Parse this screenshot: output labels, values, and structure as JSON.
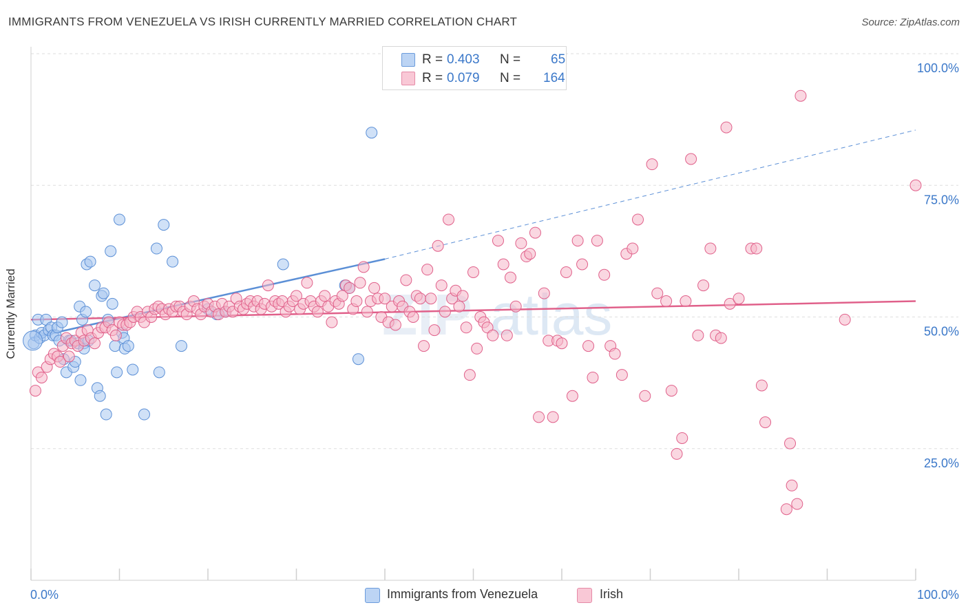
{
  "header": {
    "title": "IMMIGRANTS FROM VENEZUELA VS IRISH CURRENTLY MARRIED CORRELATION CHART",
    "source": "Source: ZipAtlas.com"
  },
  "legend_top": {
    "rows": [
      {
        "r_label": "R =",
        "r_value": "0.403",
        "n_label": "N =",
        "n_value": "65",
        "color": "#a9c8f0"
      },
      {
        "r_label": "R =",
        "r_value": "0.079",
        "n_label": "N =",
        "n_value": "164",
        "color": "#f6b6c8"
      }
    ]
  },
  "legend_bottom": {
    "items": [
      {
        "label": "Immigrants from Venezuela",
        "color": "#a9c8f0"
      },
      {
        "label": "Irish",
        "color": "#f6b6c8"
      }
    ]
  },
  "watermark": {
    "zip": "ZIP",
    "atlas": "atlas"
  },
  "chart_data": {
    "type": "scatter",
    "title": "IMMIGRANTS FROM VENEZUELA VS IRISH CURRENTLY MARRIED CORRELATION CHART",
    "xlabel": "",
    "ylabel": "Currently Married",
    "xlim": [
      0,
      100
    ],
    "ylim": [
      0,
      100
    ],
    "x_tick_labels": [
      "0.0%",
      "100.0%"
    ],
    "y_tick_labels": [
      "25.0%",
      "50.0%",
      "75.0%",
      "100.0%"
    ],
    "y_ticks": [
      25,
      50,
      75,
      100
    ],
    "grid": true,
    "legend_position": "top-center",
    "series": [
      {
        "name": "Immigrants from Venezuela",
        "color": "#5b8fd6",
        "fill": "#a9c8f0",
        "trend": {
          "x": [
            0,
            40
          ],
          "y": [
            46,
            61
          ],
          "dashed_to": {
            "x": 100,
            "y": 85.5
          }
        },
        "points": [
          [
            0.3,
            45
          ],
          [
            0.5,
            46.5
          ],
          [
            0.8,
            49.5
          ],
          [
            1,
            46
          ],
          [
            1.2,
            47
          ],
          [
            1.5,
            46.5
          ],
          [
            1.7,
            49.5
          ],
          [
            2,
            47.5
          ],
          [
            2.3,
            48
          ],
          [
            2.5,
            46.5
          ],
          [
            2.8,
            46.5
          ],
          [
            3,
            48
          ],
          [
            3.2,
            45.5
          ],
          [
            3.5,
            49
          ],
          [
            3.7,
            42
          ],
          [
            4,
            39.5
          ],
          [
            4.3,
            45.5
          ],
          [
            4.5,
            45.5
          ],
          [
            4.8,
            40.5
          ],
          [
            5,
            41.5
          ],
          [
            5.3,
            45
          ],
          [
            5.5,
            52
          ],
          [
            5.6,
            38
          ],
          [
            5.8,
            49.5
          ],
          [
            6,
            45
          ],
          [
            6,
            44
          ],
          [
            6.2,
            51
          ],
          [
            6.5,
            45.5
          ],
          [
            6.3,
            60
          ],
          [
            6.7,
            60.5
          ],
          [
            7.2,
            56
          ],
          [
            7.5,
            36.5
          ],
          [
            7.8,
            35
          ],
          [
            8,
            54
          ],
          [
            8.2,
            54.5
          ],
          [
            8.5,
            31.5
          ],
          [
            8.7,
            49.5
          ],
          [
            9,
            62.5
          ],
          [
            9.2,
            52.5
          ],
          [
            9.5,
            44.5
          ],
          [
            9.7,
            39.5
          ],
          [
            10,
            68.5
          ],
          [
            10.3,
            47
          ],
          [
            10.5,
            46
          ],
          [
            10.6,
            44
          ],
          [
            11,
            44.5
          ],
          [
            11.5,
            40
          ],
          [
            12.8,
            31.5
          ],
          [
            14.2,
            63
          ],
          [
            14.5,
            39.5
          ],
          [
            15,
            67.5
          ],
          [
            16,
            60.5
          ],
          [
            17,
            44.5
          ],
          [
            20,
            51.5
          ],
          [
            21,
            50.5
          ],
          [
            22,
            51
          ],
          [
            28.5,
            60
          ],
          [
            35.5,
            56
          ],
          [
            36,
            55.5
          ],
          [
            37,
            42
          ],
          [
            38.5,
            85
          ]
        ]
      },
      {
        "name": "Irish",
        "color": "#e0608a",
        "fill": "#f6b6c8",
        "trend": {
          "x": [
            0,
            100
          ],
          "y": [
            49.5,
            53
          ]
        },
        "points": [
          [
            0.5,
            36
          ],
          [
            0.8,
            39.5
          ],
          [
            1.2,
            38.5
          ],
          [
            1.8,
            40.5
          ],
          [
            2.2,
            42
          ],
          [
            2.6,
            43
          ],
          [
            3,
            42.5
          ],
          [
            3.3,
            41.5
          ],
          [
            3.6,
            44.5
          ],
          [
            4,
            46
          ],
          [
            4.3,
            42.5
          ],
          [
            4.6,
            45
          ],
          [
            5,
            45.5
          ],
          [
            5.3,
            44.5
          ],
          [
            5.7,
            47
          ],
          [
            6,
            45.5
          ],
          [
            6.4,
            47.5
          ],
          [
            6.8,
            46
          ],
          [
            7.2,
            45
          ],
          [
            7.6,
            47
          ],
          [
            8,
            48
          ],
          [
            8.4,
            48
          ],
          [
            8.8,
            49
          ],
          [
            9.2,
            47.5
          ],
          [
            9.6,
            46.5
          ],
          [
            10,
            49
          ],
          [
            10.4,
            48.5
          ],
          [
            10.8,
            48.5
          ],
          [
            11.2,
            49
          ],
          [
            11.6,
            50
          ],
          [
            12,
            51
          ],
          [
            12.4,
            50
          ],
          [
            12.8,
            49
          ],
          [
            13.2,
            51
          ],
          [
            13.6,
            50
          ],
          [
            14,
            51.5
          ],
          [
            14.4,
            52
          ],
          [
            14.8,
            51.5
          ],
          [
            15.2,
            50.5
          ],
          [
            15.6,
            51.5
          ],
          [
            16,
            51
          ],
          [
            16.4,
            52
          ],
          [
            16.8,
            52
          ],
          [
            17.2,
            51
          ],
          [
            17.6,
            50.5
          ],
          [
            18,
            52
          ],
          [
            18.4,
            53
          ],
          [
            18.8,
            51.5
          ],
          [
            19.2,
            50.5
          ],
          [
            19.6,
            52
          ],
          [
            20,
            52.5
          ],
          [
            20.4,
            51
          ],
          [
            20.8,
            52
          ],
          [
            21.2,
            50.5
          ],
          [
            21.6,
            52.5
          ],
          [
            22,
            51
          ],
          [
            22.4,
            52
          ],
          [
            22.8,
            51
          ],
          [
            23.2,
            53.5
          ],
          [
            23.6,
            52
          ],
          [
            24,
            51.5
          ],
          [
            24.4,
            52.5
          ],
          [
            24.8,
            53
          ],
          [
            25.2,
            52
          ],
          [
            25.6,
            53
          ],
          [
            26,
            51.5
          ],
          [
            26.4,
            52.5
          ],
          [
            26.8,
            56
          ],
          [
            27.2,
            52
          ],
          [
            27.6,
            53
          ],
          [
            28,
            52.5
          ],
          [
            28.4,
            53
          ],
          [
            28.8,
            51
          ],
          [
            29.2,
            52
          ],
          [
            29.6,
            53
          ],
          [
            30,
            54
          ],
          [
            30.4,
            51.5
          ],
          [
            30.8,
            52.5
          ],
          [
            31.2,
            56.5
          ],
          [
            31.6,
            53
          ],
          [
            32,
            52
          ],
          [
            32.4,
            51
          ],
          [
            32.8,
            53
          ],
          [
            33.2,
            54
          ],
          [
            33.6,
            52
          ],
          [
            34,
            49
          ],
          [
            34.4,
            53
          ],
          [
            34.8,
            52.5
          ],
          [
            35.2,
            54
          ],
          [
            35.6,
            56
          ],
          [
            36,
            55.5
          ],
          [
            36.4,
            51.5
          ],
          [
            36.8,
            53
          ],
          [
            37.2,
            56.5
          ],
          [
            37.6,
            59.5
          ],
          [
            38,
            51
          ],
          [
            38.4,
            53
          ],
          [
            38.8,
            55.5
          ],
          [
            39.2,
            53.5
          ],
          [
            39.6,
            50
          ],
          [
            40,
            53.5
          ],
          [
            40.4,
            49
          ],
          [
            40.8,
            52
          ],
          [
            41.2,
            48.5
          ],
          [
            41.6,
            53
          ],
          [
            42,
            52
          ],
          [
            42.4,
            57
          ],
          [
            42.8,
            51
          ],
          [
            43.2,
            50
          ],
          [
            43.6,
            54
          ],
          [
            44,
            53.5
          ],
          [
            44.4,
            44.5
          ],
          [
            44.8,
            59
          ],
          [
            45.2,
            53.5
          ],
          [
            45.6,
            47.5
          ],
          [
            46,
            63.5
          ],
          [
            46.4,
            56
          ],
          [
            46.8,
            51
          ],
          [
            47.2,
            68.5
          ],
          [
            47.6,
            53.5
          ],
          [
            48,
            55
          ],
          [
            48.4,
            52
          ],
          [
            48.8,
            54
          ],
          [
            49.2,
            48
          ],
          [
            49.6,
            39
          ],
          [
            50,
            58.5
          ],
          [
            50.4,
            44
          ],
          [
            50.8,
            50
          ],
          [
            51.2,
            49
          ],
          [
            51.6,
            48
          ],
          [
            52.2,
            46.5
          ],
          [
            52.8,
            64.5
          ],
          [
            53.4,
            60
          ],
          [
            53.8,
            46.5
          ],
          [
            54.2,
            57.5
          ],
          [
            54.8,
            52
          ],
          [
            55.4,
            64
          ],
          [
            56,
            61.5
          ],
          [
            56.4,
            62
          ],
          [
            57,
            66
          ],
          [
            57.4,
            31
          ],
          [
            58,
            54.5
          ],
          [
            58.5,
            45.5
          ],
          [
            59,
            31
          ],
          [
            59.5,
            45.5
          ],
          [
            60,
            45
          ],
          [
            60.5,
            58.5
          ],
          [
            61.2,
            35
          ],
          [
            61.8,
            64.5
          ],
          [
            62.3,
            60
          ],
          [
            63,
            44.5
          ],
          [
            63.5,
            38.5
          ],
          [
            64,
            64.5
          ],
          [
            64.8,
            58
          ],
          [
            65.5,
            44.5
          ],
          [
            66,
            43
          ],
          [
            66.8,
            39
          ],
          [
            67.3,
            62
          ],
          [
            68,
            63
          ],
          [
            68.6,
            68.5
          ],
          [
            69.4,
            35
          ],
          [
            70.2,
            79
          ],
          [
            70.8,
            54.5
          ],
          [
            71.8,
            53
          ],
          [
            72.4,
            36
          ],
          [
            73,
            24
          ],
          [
            73.6,
            27
          ],
          [
            74,
            53
          ],
          [
            74.6,
            80
          ],
          [
            75.4,
            46.5
          ],
          [
            76,
            56
          ],
          [
            76.8,
            63
          ],
          [
            77.4,
            46.5
          ],
          [
            78,
            46
          ],
          [
            78.6,
            86
          ],
          [
            79,
            52.5
          ],
          [
            80,
            53.5
          ],
          [
            81.4,
            63
          ],
          [
            82,
            63
          ],
          [
            82.6,
            37
          ],
          [
            83,
            30
          ],
          [
            85.4,
            13.5
          ],
          [
            86,
            18
          ],
          [
            86.6,
            14.5
          ],
          [
            85.8,
            26
          ],
          [
            87,
            92
          ],
          [
            92,
            49.5
          ],
          [
            100,
            75
          ]
        ]
      }
    ]
  }
}
